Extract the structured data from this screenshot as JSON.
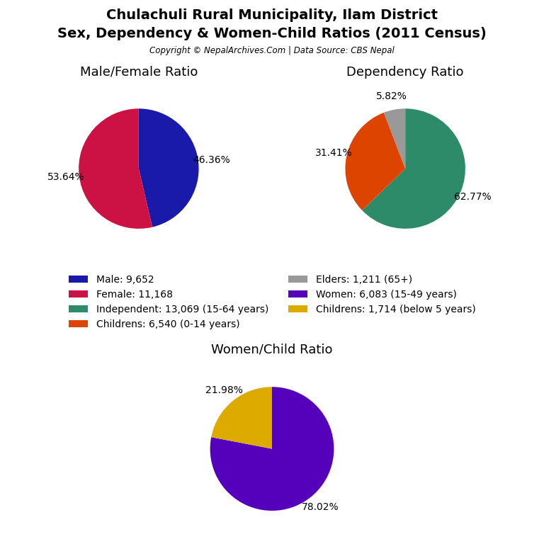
{
  "title": "Chulachuli Rural Municipality, Ilam District",
  "subtitle": "Sex, Dependency & Women-Child Ratios (2011 Census)",
  "annotations": [
    "Copyright © NepalArchives.Com | Data Source: CBS Nepal"
  ],
  "legend": "center",
  "chart_data": [
    {
      "type": "pie",
      "title": "Male/Female Ratio",
      "categories": [
        "Male: 9,652",
        "Female: 11,168"
      ],
      "values": [
        46.36,
        53.64
      ],
      "value_labels": [
        "46.36%",
        "53.64%"
      ],
      "colors": [
        "#1a1aaa",
        "#cc1144"
      ],
      "data_labels": true
    },
    {
      "type": "pie",
      "title": "Dependency Ratio",
      "categories": [
        "Independent: 13,069 (15-64 years)",
        "Childrens: 6,540 (0-14 years)",
        "Elders: 1,211 (65+)"
      ],
      "values": [
        62.77,
        31.41,
        5.82
      ],
      "value_labels": [
        "62.77%",
        "31.41%",
        "5.82%"
      ],
      "colors": [
        "#2e8b6a",
        "#dd4400",
        "#999999"
      ],
      "data_labels": true
    },
    {
      "type": "pie",
      "title": "Women/Child Ratio",
      "categories": [
        "Women: 6,083 (15-49 years)",
        "Childrens: 1,714 (below 5 years)"
      ],
      "values": [
        78.02,
        21.98
      ],
      "value_labels": [
        "78.02%",
        "21.98%"
      ],
      "colors": [
        "#5500bb",
        "#ddaa00"
      ],
      "data_labels": true
    }
  ]
}
